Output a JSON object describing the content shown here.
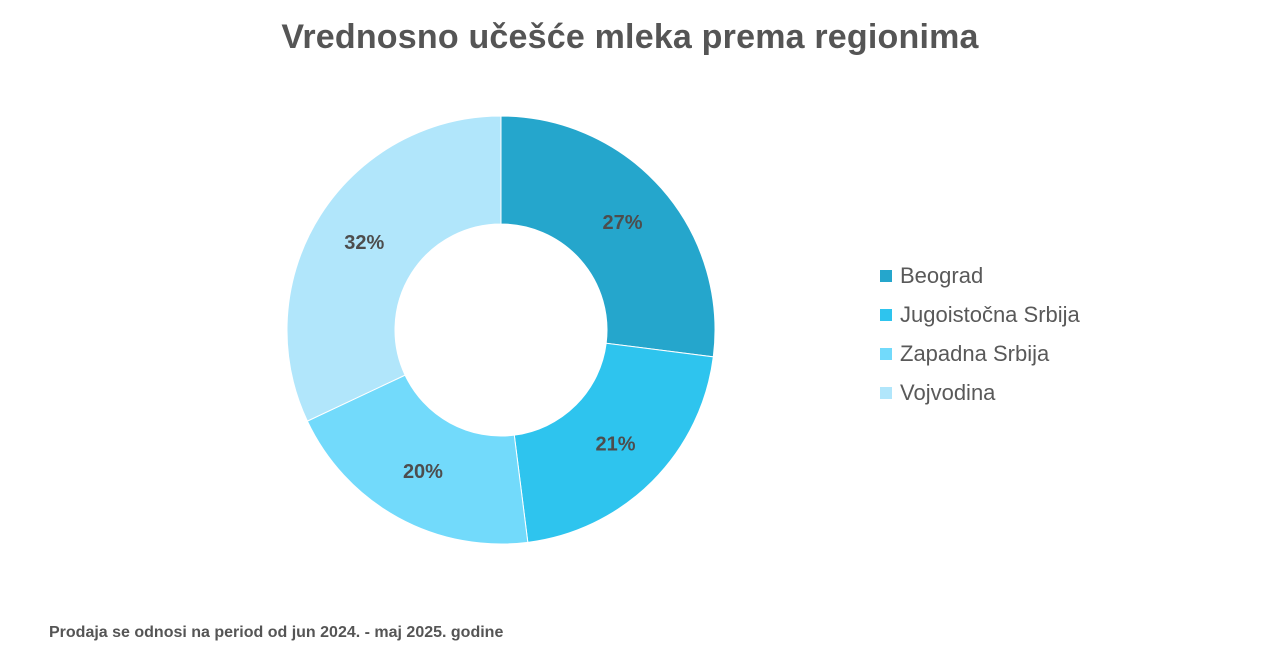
{
  "chart_data": {
    "type": "pie",
    "subtype": "donut",
    "title": "Vrednosno učešće mleka prema regionima",
    "categories": [
      "Beograd",
      "Jugoistočna Srbija",
      "Zapadna Srbija",
      "Vojvodina"
    ],
    "values": [
      27,
      21,
      20,
      32
    ],
    "labels": [
      "27%",
      "21%",
      "20%",
      "32%"
    ],
    "colors": [
      "#25A6CC",
      "#2EC4EE",
      "#72DAFB",
      "#B1E6FB"
    ],
    "legend_position": "right"
  },
  "footnote": "Prodaja se odnosi na period od jun 2024. - maj 2025. godine"
}
